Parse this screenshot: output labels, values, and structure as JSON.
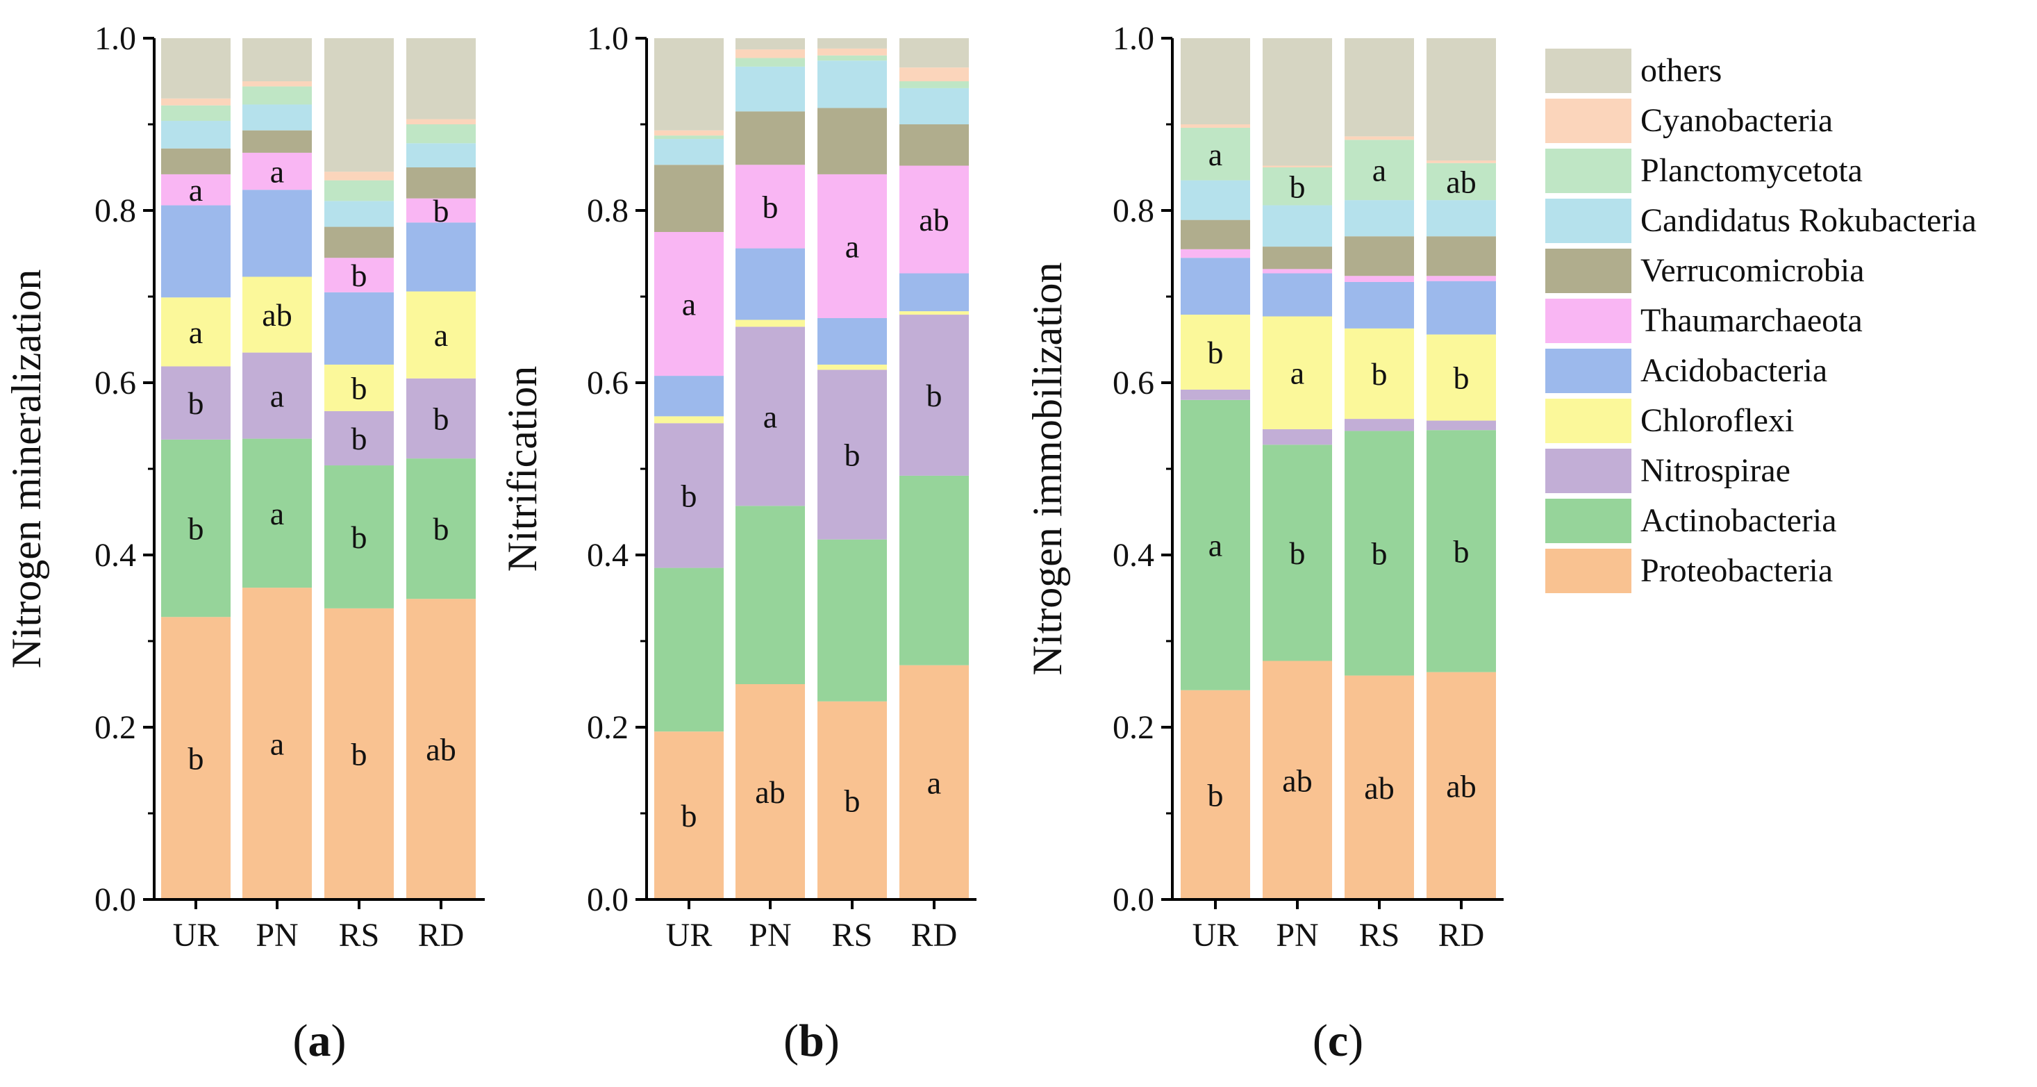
{
  "series_names": [
    "Proteobacteria",
    "Actinobacteria",
    "Nitrospirae",
    "Chloroflexi",
    "Acidobacteria",
    "Thaumarchaeota",
    "Verrucomicrobia",
    "Candidatus Rokubacteria",
    "Planctomycetota",
    "Cyanobacteria",
    "others"
  ],
  "series_colors": [
    "#f9c291",
    "#96d49a",
    "#c2aed6",
    "#fbf89a",
    "#9cb9ec",
    "#f9b6f3",
    "#b0ad8d",
    "#b5e1ec",
    "#bfe6c5",
    "#fbd5bb",
    "#d6d5c2"
  ],
  "legend_order": [
    "others",
    "Cyanobacteria",
    "Planctomycetota",
    "Candidatus Rokubacteria",
    "Verrucomicrobia",
    "Thaumarchaeota",
    "Acidobacteria",
    "Chloroflexi",
    "Nitrospirae",
    "Actinobacteria",
    "Proteobacteria"
  ],
  "chart_data": [
    {
      "type": "bar",
      "stacked": true,
      "panel_label": "a",
      "ylabel": "Nitrogen mineralization",
      "ylim": [
        0,
        1
      ],
      "yticks": [
        "0.0",
        "0.2",
        "0.4",
        "0.6",
        "0.8",
        "1.0"
      ],
      "categories": [
        "UR",
        "PN",
        "RS",
        "RD"
      ],
      "series": [
        {
          "name": "Proteobacteria",
          "values": [
            0.328,
            0.362,
            0.338,
            0.349
          ],
          "letters": [
            "b",
            "a",
            "b",
            "ab"
          ]
        },
        {
          "name": "Actinobacteria",
          "values": [
            0.206,
            0.173,
            0.166,
            0.163
          ],
          "letters": [
            "b",
            "a",
            "b",
            "b"
          ]
        },
        {
          "name": "Nitrospirae",
          "values": [
            0.085,
            0.1,
            0.063,
            0.093
          ],
          "letters": [
            "b",
            "a",
            "b",
            "b"
          ]
        },
        {
          "name": "Chloroflexi",
          "values": [
            0.08,
            0.088,
            0.054,
            0.101
          ],
          "letters": [
            "a",
            "ab",
            "b",
            "a"
          ]
        },
        {
          "name": "Acidobacteria",
          "values": [
            0.107,
            0.101,
            0.084,
            0.08
          ],
          "letters": [
            "",
            "",
            "",
            ""
          ]
        },
        {
          "name": "Thaumarchaeota",
          "values": [
            0.036,
            0.043,
            0.04,
            0.028
          ],
          "letters": [
            "a",
            "a",
            "b",
            "b"
          ]
        },
        {
          "name": "Verrucomicrobia",
          "values": [
            0.03,
            0.026,
            0.036,
            0.036
          ],
          "letters": [
            "",
            "",
            "",
            ""
          ]
        },
        {
          "name": "Candidatus Rokubacteria",
          "values": [
            0.032,
            0.03,
            0.03,
            0.028
          ],
          "letters": [
            "",
            "",
            "",
            ""
          ]
        },
        {
          "name": "Planctomycetota",
          "values": [
            0.018,
            0.021,
            0.024,
            0.022
          ],
          "letters": [
            "",
            "",
            "",
            ""
          ]
        },
        {
          "name": "Cyanobacteria",
          "values": [
            0.008,
            0.006,
            0.01,
            0.006
          ],
          "letters": [
            "",
            "",
            "",
            ""
          ]
        },
        {
          "name": "others",
          "values": [
            0.07,
            0.05,
            0.155,
            0.094
          ],
          "letters": [
            "",
            "",
            "",
            ""
          ]
        }
      ]
    },
    {
      "type": "bar",
      "stacked": true,
      "panel_label": "b",
      "ylabel": "Nitrification",
      "ylim": [
        0,
        1
      ],
      "yticks": [
        "0.0",
        "0.2",
        "0.4",
        "0.6",
        "0.8",
        "1.0"
      ],
      "categories": [
        "UR",
        "PN",
        "RS",
        "RD"
      ],
      "series": [
        {
          "name": "Proteobacteria",
          "values": [
            0.195,
            0.25,
            0.23,
            0.272
          ],
          "letters": [
            "b",
            "ab",
            "b",
            "a"
          ]
        },
        {
          "name": "Actinobacteria",
          "values": [
            0.19,
            0.207,
            0.188,
            0.22
          ],
          "letters": [
            "",
            "",
            "",
            ""
          ]
        },
        {
          "name": "Nitrospirae",
          "values": [
            0.168,
            0.208,
            0.197,
            0.187
          ],
          "letters": [
            "b",
            "a",
            "b",
            "b"
          ]
        },
        {
          "name": "Chloroflexi",
          "values": [
            0.008,
            0.008,
            0.006,
            0.004
          ],
          "letters": [
            "",
            "",
            "",
            ""
          ]
        },
        {
          "name": "Acidobacteria",
          "values": [
            0.047,
            0.083,
            0.054,
            0.044
          ],
          "letters": [
            "",
            "",
            "",
            ""
          ]
        },
        {
          "name": "Thaumarchaeota",
          "values": [
            0.167,
            0.097,
            0.167,
            0.125
          ],
          "letters": [
            "a",
            "b",
            "a",
            "ab"
          ]
        },
        {
          "name": "Verrucomicrobia",
          "values": [
            0.078,
            0.062,
            0.077,
            0.048
          ],
          "letters": [
            "",
            "",
            "",
            ""
          ]
        },
        {
          "name": "Candidatus Rokubacteria",
          "values": [
            0.03,
            0.052,
            0.055,
            0.042
          ],
          "letters": [
            "",
            "",
            "",
            ""
          ]
        },
        {
          "name": "Planctomycetota",
          "values": [
            0.004,
            0.01,
            0.006,
            0.008
          ],
          "letters": [
            "",
            "",
            "",
            ""
          ]
        },
        {
          "name": "Cyanobacteria",
          "values": [
            0.006,
            0.01,
            0.008,
            0.016
          ],
          "letters": [
            "",
            "",
            "",
            ""
          ]
        },
        {
          "name": "others",
          "values": [
            0.107,
            0.013,
            0.012,
            0.034
          ],
          "letters": [
            "",
            "",
            "",
            ""
          ]
        }
      ]
    },
    {
      "type": "bar",
      "stacked": true,
      "panel_label": "c",
      "ylabel": "Nitrogen immobilization",
      "ylim": [
        0,
        1
      ],
      "yticks": [
        "0.0",
        "0.2",
        "0.4",
        "0.6",
        "0.8",
        "1.0"
      ],
      "categories": [
        "UR",
        "PN",
        "RS",
        "RD"
      ],
      "series": [
        {
          "name": "Proteobacteria",
          "values": [
            0.243,
            0.277,
            0.26,
            0.264
          ],
          "letters": [
            "b",
            "ab",
            "ab",
            "ab"
          ]
        },
        {
          "name": "Actinobacteria",
          "values": [
            0.337,
            0.251,
            0.284,
            0.281
          ],
          "letters": [
            "a",
            "b",
            "b",
            "b"
          ]
        },
        {
          "name": "Nitrospirae",
          "values": [
            0.012,
            0.018,
            0.014,
            0.011
          ],
          "letters": [
            "",
            "",
            "",
            ""
          ]
        },
        {
          "name": "Chloroflexi",
          "values": [
            0.087,
            0.131,
            0.105,
            0.1
          ],
          "letters": [
            "b",
            "a",
            "b",
            "b"
          ]
        },
        {
          "name": "Acidobacteria",
          "values": [
            0.066,
            0.05,
            0.054,
            0.062
          ],
          "letters": [
            "",
            "",
            "",
            ""
          ]
        },
        {
          "name": "Thaumarchaeota",
          "values": [
            0.01,
            0.005,
            0.007,
            0.006
          ],
          "letters": [
            "",
            "",
            "",
            ""
          ]
        },
        {
          "name": "Verrucomicrobia",
          "values": [
            0.034,
            0.026,
            0.046,
            0.046
          ],
          "letters": [
            "",
            "",
            "",
            ""
          ]
        },
        {
          "name": "Candidatus Rokubacteria",
          "values": [
            0.046,
            0.048,
            0.042,
            0.042
          ],
          "letters": [
            "",
            "",
            "",
            ""
          ]
        },
        {
          "name": "Planctomycetota",
          "values": [
            0.061,
            0.044,
            0.07,
            0.043
          ],
          "letters": [
            "a",
            "b",
            "a",
            "ab"
          ]
        },
        {
          "name": "Cyanobacteria",
          "values": [
            0.004,
            0.002,
            0.004,
            0.003
          ],
          "letters": [
            "",
            "",
            "",
            ""
          ]
        },
        {
          "name": "others",
          "values": [
            0.1,
            0.148,
            0.114,
            0.142
          ],
          "letters": [
            "",
            "",
            "",
            ""
          ]
        }
      ]
    }
  ]
}
